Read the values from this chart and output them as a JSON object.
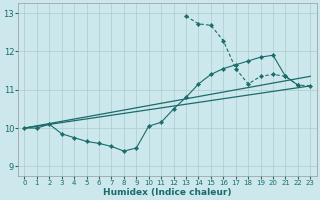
{
  "xlabel": "Humidex (Indice chaleur)",
  "bg_color": "#cce8ec",
  "grid_color": "#aacccc",
  "line_color": "#1a6b6b",
  "xlim": [
    -0.5,
    23.5
  ],
  "ylim": [
    8.75,
    13.25
  ],
  "xticks": [
    0,
    1,
    2,
    3,
    4,
    5,
    6,
    7,
    8,
    9,
    10,
    11,
    12,
    13,
    14,
    15,
    16,
    17,
    18,
    19,
    20,
    21,
    22,
    23
  ],
  "yticks": [
    9,
    10,
    11,
    12,
    13
  ],
  "main_line": {
    "x": [
      0,
      1,
      2,
      3,
      4,
      5,
      6,
      7,
      8,
      9,
      10,
      11,
      12,
      13,
      14,
      15,
      16,
      17,
      18,
      19,
      20,
      21,
      22
    ],
    "y": [
      10.0,
      10.0,
      10.1,
      9.85,
      9.75,
      9.65,
      9.6,
      9.52,
      9.4,
      9.48,
      10.05,
      10.15,
      10.5,
      10.8,
      11.15,
      11.4,
      11.55,
      11.65,
      11.75,
      11.85,
      11.9,
      11.35,
      11.12
    ]
  },
  "dashed_line": {
    "x": [
      13,
      14,
      15,
      16,
      17,
      18,
      19,
      20,
      21,
      22,
      23
    ],
    "y": [
      12.92,
      12.72,
      12.68,
      12.28,
      11.55,
      11.15,
      11.35,
      11.4,
      11.35,
      11.12,
      11.1
    ]
  },
  "trend1": {
    "x": [
      0,
      23
    ],
    "y": [
      10.0,
      11.1
    ]
  },
  "trend2": {
    "x": [
      0,
      23
    ],
    "y": [
      10.0,
      11.35
    ]
  }
}
